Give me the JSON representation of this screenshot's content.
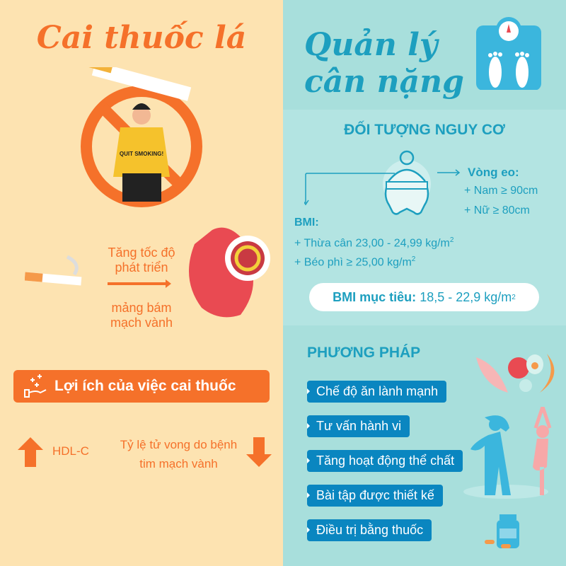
{
  "colors": {
    "orange": "#f5712a",
    "blue": "#1d9fbf",
    "pill": "#0a86c0",
    "left_bg": "#fde3b1",
    "right_bg": "#a8dfdc"
  },
  "left": {
    "title": "Cai thuốc lá",
    "shirt_text": "QUIT SMOKING!",
    "effect_top": "Tăng tốc độ phát triển",
    "effect_bottom": "mảng bám mạch vành",
    "benefit_title": "Lợi ích của việc cai thuốc",
    "benefit_icon": "hand-sparkle-icon",
    "hdl": "HDL-C",
    "mortality": "Tỷ lệ tử vong do bệnh tim mạch vành"
  },
  "right": {
    "title_line1": "Quản lý",
    "title_line2": "cân nặng",
    "risk_title": "ĐỐI TƯỢNG NGUY CƠ",
    "waist_label": "Vòng eo:",
    "waist_male": "+ Nam ≥ 90cm",
    "waist_female": "+ Nữ ≥ 80cm",
    "bmi_label": "BMI:",
    "bmi_overweight": "+ Thừa cân 23,00 - 24,99 kg/m",
    "bmi_obese": "+ Béo phì ≥ 25,00 kg/m",
    "unit_sup": "2",
    "target_label": "BMI mục tiêu:",
    "target_value": " 18,5 - 22,9 kg/m",
    "method_title": "PHƯƠNG PHÁP",
    "methods": [
      "Chế độ ăn lành mạnh",
      "Tư vấn hành vi",
      "Tăng hoạt động thể chất",
      "Bài tập được thiết kế",
      "Điều trị bằng thuốc"
    ]
  }
}
